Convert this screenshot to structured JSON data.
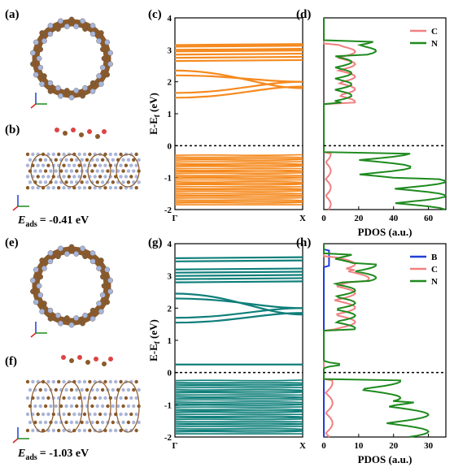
{
  "panels": {
    "a": "(a)",
    "b": "(b)",
    "c": "(c)",
    "d": "(d)",
    "e": "(e)",
    "f": "(f)",
    "g": "(g)",
    "h": "(h)"
  },
  "eads_top": {
    "symbol": "E",
    "subscript": "ads",
    "value": "= -0.41 eV"
  },
  "eads_bottom": {
    "symbol": "E",
    "subscript": "ads",
    "value": "= -1.03 eV"
  },
  "colors": {
    "band_top": "#F58A1F",
    "band_bottom": "#0F7F7A",
    "B": "#1F3FD8",
    "C": "#F08080",
    "N": "#1E8A1E",
    "carbon_atom": "#8B5A2B",
    "nitrogen_atom": "#A9B4D8"
  },
  "chart_data": [
    {
      "id": "c",
      "type": "line",
      "ylabel": "E-Ef (eV)",
      "ylabel_main": "E-E",
      "ylabel_sub": "f",
      "ylabel_unit": " (eV)",
      "ylim": [
        -2,
        4
      ],
      "yticks": [
        "-2",
        "-1",
        "0",
        "1",
        "2",
        "3",
        "4"
      ],
      "xticks": [
        "Γ",
        "X"
      ],
      "fermi_level": 0,
      "bands_flat_upper": [
        3.15,
        3.1,
        3.0,
        2.95,
        2.85,
        2.75,
        2.65
      ],
      "bands_crossing": [
        [
          2.35,
          1.8
        ],
        [
          2.2,
          2.0
        ],
        [
          1.65,
          2.0
        ],
        [
          1.5,
          1.85
        ]
      ],
      "bands_valence_range": [
        -1.85,
        -0.3
      ]
    },
    {
      "id": "d",
      "type": "line",
      "xlabel": "PDOS (a.u.)",
      "xlim": [
        0,
        70
      ],
      "xticks": [
        "0",
        "20",
        "40",
        "60"
      ],
      "ylim": [
        -2,
        4
      ],
      "fermi_level": 0,
      "series": [
        {
          "name": "C",
          "values": []
        },
        {
          "name": "N",
          "values": []
        }
      ]
    },
    {
      "id": "g",
      "type": "line",
      "ylabel": "E-Ef (eV)",
      "ylabel_main": "E-E",
      "ylabel_sub": "f",
      "ylabel_unit": " (eV)",
      "ylim": [
        -2,
        4
      ],
      "yticks": [
        "-2",
        "-1",
        "0",
        "1",
        "2",
        "3",
        "4"
      ],
      "xticks": [
        "Γ",
        "X"
      ],
      "fermi_level": 0,
      "bands_flat_upper": [
        3.55,
        3.45,
        3.2,
        3.1,
        3.0,
        2.9,
        2.8
      ],
      "bands_crossing": [
        [
          2.45,
          1.8
        ],
        [
          2.3,
          2.0
        ],
        [
          1.7,
          2.0
        ],
        [
          1.55,
          1.85
        ]
      ],
      "band_gap_state": 0.25,
      "bands_valence_range": [
        -1.9,
        -0.25
      ]
    },
    {
      "id": "h",
      "type": "line",
      "xlabel": "PDOS (a.u.)",
      "xlim": [
        0,
        35
      ],
      "xticks": [
        "0",
        "10",
        "20",
        "30"
      ],
      "ylim": [
        -2,
        4
      ],
      "fermi_level": 0,
      "series": [
        {
          "name": "B",
          "values": []
        },
        {
          "name": "C",
          "values": []
        },
        {
          "name": "N",
          "values": []
        }
      ]
    }
  ]
}
